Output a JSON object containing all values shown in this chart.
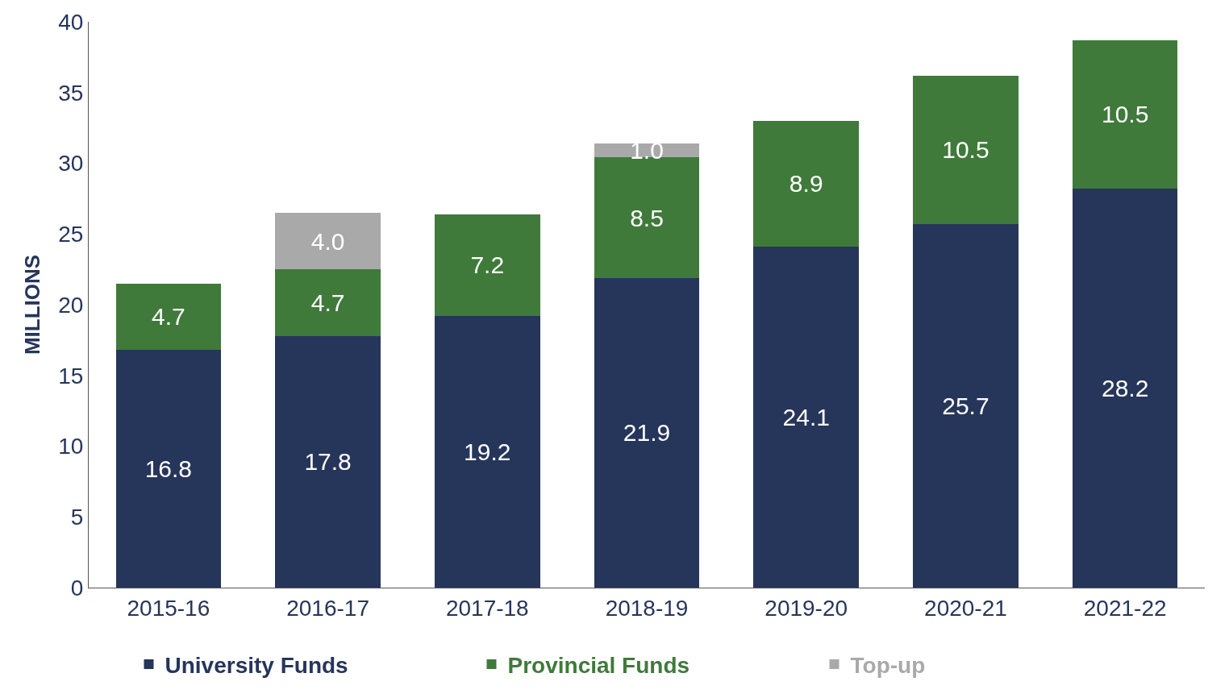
{
  "chart_data": {
    "type": "bar",
    "stacked": true,
    "ylabel": "MILLIONS",
    "categories": [
      "2015-16",
      "2016-17",
      "2017-18",
      "2018-19",
      "2019-20",
      "2020-21",
      "2021-22"
    ],
    "series": [
      {
        "name": "University Funds",
        "color": "#26355a",
        "values": [
          16.8,
          17.8,
          19.2,
          21.9,
          24.1,
          25.7,
          28.2
        ],
        "value_labels": [
          "16.8",
          "17.8",
          "19.2",
          "21.9",
          "24.1",
          "25.7",
          "28.2"
        ]
      },
      {
        "name": "Provincial Funds",
        "color": "#3f7a3a",
        "values": [
          4.7,
          4.7,
          7.2,
          8.5,
          8.9,
          10.5,
          10.5
        ],
        "value_labels": [
          "4.7",
          "4.7",
          "7.2",
          "8.5",
          "8.9",
          "10.5",
          "10.5"
        ]
      },
      {
        "name": "Top-up",
        "color": "#a9a9a9",
        "values": [
          null,
          4.0,
          null,
          1.0,
          null,
          null,
          null
        ],
        "value_labels": [
          null,
          "4.0",
          null,
          "1.0",
          null,
          null,
          null
        ]
      }
    ],
    "ylim": [
      0,
      40
    ],
    "yticks": [
      0,
      5,
      10,
      15,
      20,
      25,
      30,
      35,
      40
    ],
    "legend": "bottom"
  }
}
